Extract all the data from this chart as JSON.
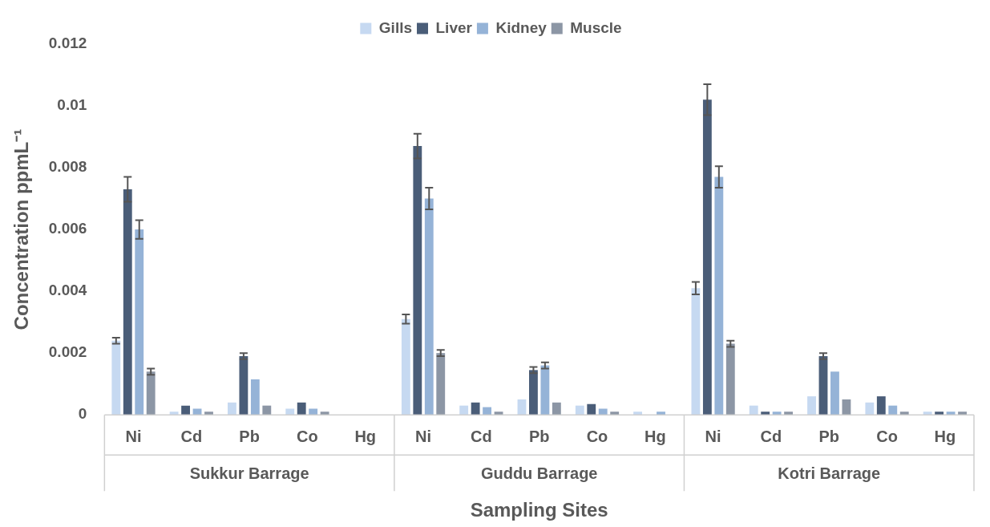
{
  "chart_data": {
    "type": "bar",
    "xlabel": "Sampling Sites",
    "ylabel": "Concentration ppmL⁻¹",
    "categories": [
      "Ni",
      "Cd",
      "Pb",
      "Co",
      "Hg",
      "Ni",
      "Cd",
      "Pb",
      "Co",
      "Hg",
      "Ni",
      "Cd",
      "Pb",
      "Co",
      "Hg"
    ],
    "annotations": [
      "Sukkur Barrage",
      "Guddu Barrage",
      "Kotri Barrage"
    ],
    "series": [
      {
        "name": "Gills",
        "color": "#c6d9f1",
        "values": [
          0.0024,
          0.0001,
          0.0004,
          0.0002,
          0,
          0.0031,
          0.0003,
          0.0005,
          0.0003,
          0.0001,
          0.0041,
          0.0003,
          0.0006,
          0.0004,
          0.0001
        ],
        "errors": [
          0.0001,
          null,
          null,
          null,
          null,
          0.00015,
          null,
          null,
          null,
          null,
          0.0002,
          null,
          null,
          null,
          null
        ]
      },
      {
        "name": "Liver",
        "color": "#4a5d78",
        "values": [
          0.0073,
          0.0003,
          0.0019,
          0.0004,
          0,
          0.0087,
          0.0004,
          0.00145,
          0.00035,
          0,
          0.0102,
          0.0001,
          0.0019,
          0.0006,
          0.0001
        ],
        "errors": [
          0.0004,
          null,
          0.0001,
          null,
          null,
          0.0004,
          null,
          0.0001,
          null,
          null,
          0.0005,
          null,
          0.0001,
          null,
          null
        ]
      },
      {
        "name": "Kidney",
        "color": "#95b3d7",
        "values": [
          0.006,
          0.0002,
          0.00115,
          0.0002,
          0,
          0.007,
          0.00025,
          0.0016,
          0.0002,
          0.0001,
          0.0077,
          0.0001,
          0.0014,
          0.0003,
          0.0001
        ],
        "errors": [
          0.0003,
          null,
          null,
          null,
          null,
          0.00035,
          null,
          0.0001,
          null,
          null,
          0.00035,
          null,
          null,
          null,
          null
        ]
      },
      {
        "name": "Muscle",
        "color": "#8c96a5",
        "values": [
          0.0014,
          0.0001,
          0.0003,
          0.0001,
          0,
          0.002,
          0.0001,
          0.0004,
          0.0001,
          0,
          0.0023,
          0.0001,
          0.0005,
          0.0001,
          0.0001
        ],
        "errors": [
          0.0001,
          null,
          null,
          null,
          null,
          0.0001,
          null,
          null,
          null,
          null,
          0.0001,
          null,
          null,
          null,
          null
        ]
      }
    ],
    "ylim": [
      0,
      0.012
    ],
    "yticks": [
      0,
      0.002,
      0.004,
      0.006,
      0.008,
      0.01,
      0.012
    ],
    "legend": "top"
  }
}
